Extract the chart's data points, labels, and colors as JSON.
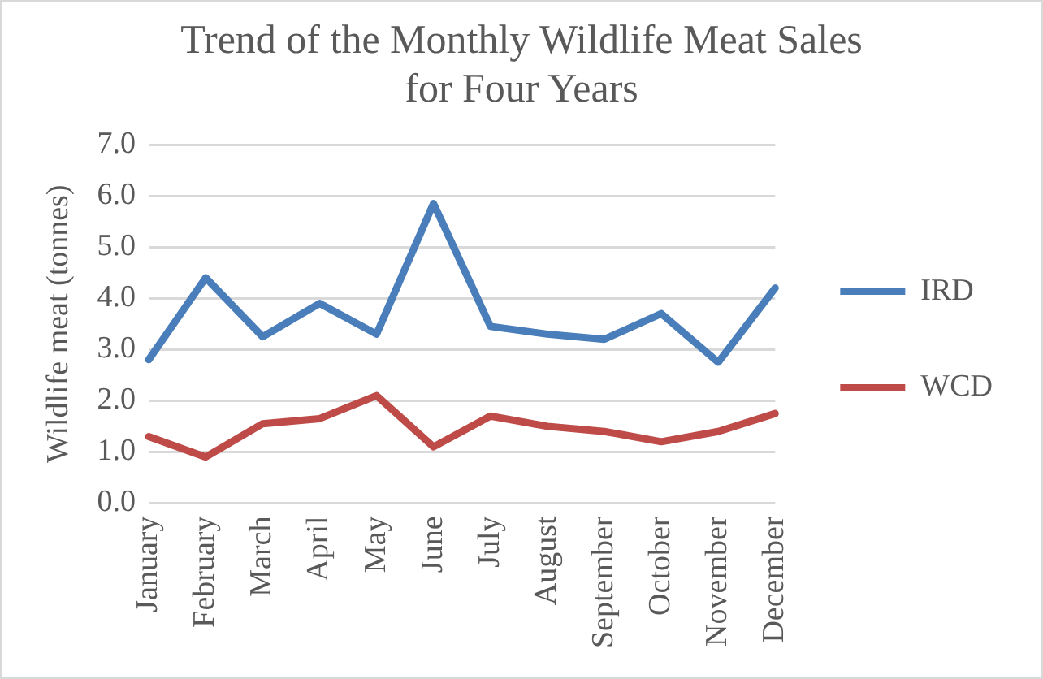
{
  "chart_data": {
    "type": "line",
    "title": "Trend of the Monthly Wildlife Meat Sales for Four Years",
    "ylabel": "Wildlife meat (tonnes)",
    "categories": [
      "January",
      "February",
      "March",
      "April",
      "May",
      "June",
      "July",
      "August",
      "September",
      "October",
      "November",
      "December"
    ],
    "series": [
      {
        "name": "IRD",
        "color": "#4a7ebb",
        "values": [
          2.8,
          4.4,
          3.25,
          3.9,
          3.3,
          5.85,
          3.45,
          3.3,
          3.2,
          3.7,
          2.75,
          4.2
        ]
      },
      {
        "name": "WCD",
        "color": "#be4b48",
        "values": [
          1.3,
          0.9,
          1.55,
          1.65,
          2.1,
          1.1,
          1.7,
          1.5,
          1.4,
          1.2,
          1.4,
          1.75
        ]
      }
    ],
    "ylim": [
      0,
      7
    ],
    "yticks": [
      {
        "value": 0,
        "label": "0.0"
      },
      {
        "value": 1,
        "label": "1.0"
      },
      {
        "value": 2,
        "label": "2.0"
      },
      {
        "value": 3,
        "label": "3.0"
      },
      {
        "value": 4,
        "label": "4.0"
      },
      {
        "value": 5,
        "label": "5.0"
      },
      {
        "value": 6,
        "label": "6.0"
      },
      {
        "value": 7,
        "label": "7.0"
      }
    ],
    "grid": "y",
    "legend": "right",
    "marker": "none",
    "line_style": "solid"
  }
}
